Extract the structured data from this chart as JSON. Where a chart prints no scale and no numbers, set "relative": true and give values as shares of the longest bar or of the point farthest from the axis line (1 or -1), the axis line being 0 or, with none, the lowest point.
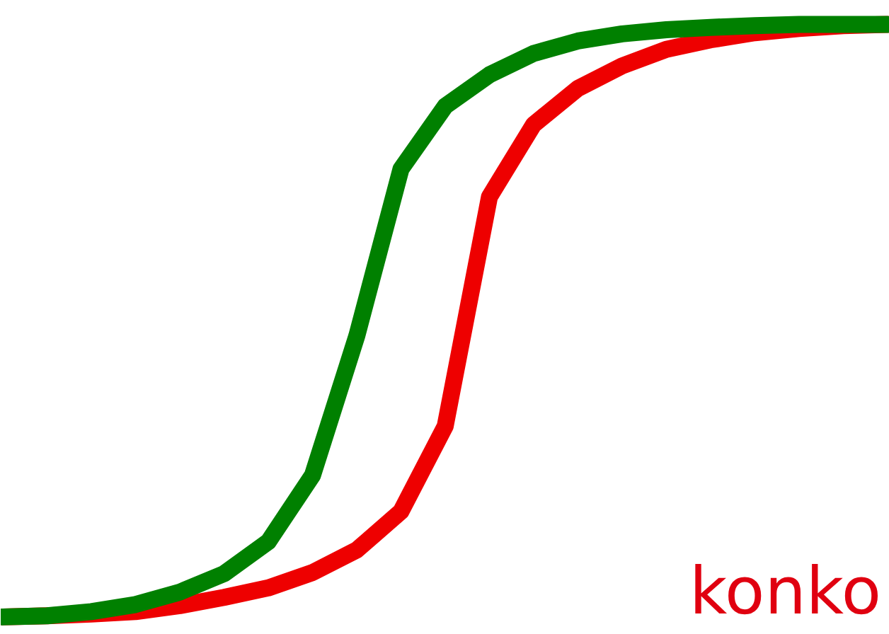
{
  "chart_data": {
    "type": "line",
    "relative": true,
    "categories": [
      null,
      null,
      null,
      null,
      null,
      null,
      null,
      null,
      null,
      null,
      null,
      null,
      null,
      null,
      null,
      null,
      null,
      null,
      null,
      null,
      null
    ],
    "series": [
      {
        "color": "#ee0000",
        "values": [
          0,
          0.002,
          0.005,
          0.009,
          0.019,
          0.033,
          0.049,
          0.075,
          0.113,
          0.178,
          0.322,
          0.709,
          0.831,
          0.892,
          0.93,
          0.958,
          0.974,
          0.986,
          0.993,
          0.998,
          1
        ]
      },
      {
        "color": "#008000",
        "values": [
          0,
          0.002,
          0.009,
          0.021,
          0.042,
          0.073,
          0.127,
          0.239,
          0.474,
          0.756,
          0.862,
          0.915,
          0.951,
          0.972,
          0.984,
          0.991,
          0.995,
          0.998,
          1,
          1,
          1
        ]
      }
    ],
    "annotations": [
      "konko"
    ],
    "line_style": "solid"
  }
}
